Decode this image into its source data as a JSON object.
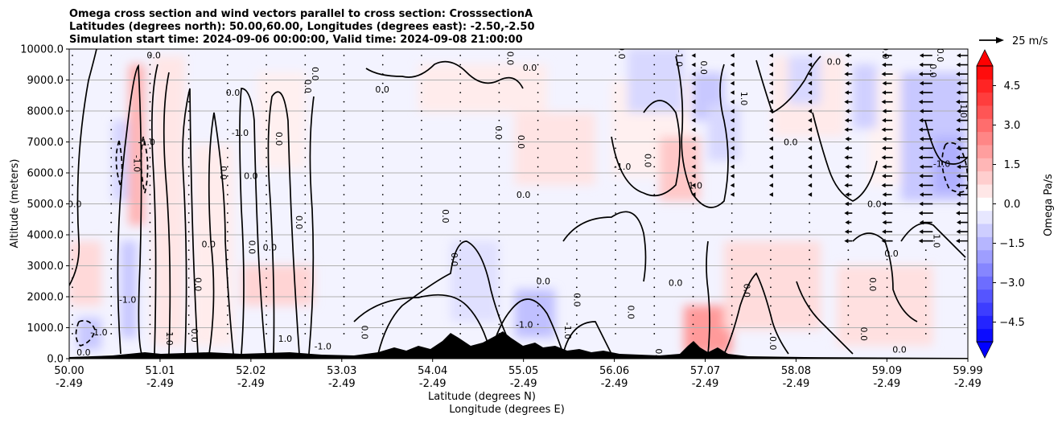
{
  "chart_data": {
    "type": "heatmap",
    "title_lines": [
      "Omega cross section and wind vectors parallel to cross section: CrosssectionA",
      "Latitudes (degrees north): 50.00,60.00, Longitudes (degrees east): -2.50,-2.50",
      "Simulation start time: 2024-09-06 00:00:00, Valid time: 2024-09-08 21:00:00"
    ],
    "ylabel": "Altitude (meters)",
    "xlabel_lat": "Latitude (degrees N)",
    "xlabel_lon": "Longitude (degrees E)",
    "ylim": [
      0,
      10000
    ],
    "yticks": [
      "0.0",
      "1000.0",
      "2000.0",
      "3000.0",
      "4000.0",
      "5000.0",
      "6000.0",
      "7000.0",
      "8000.0",
      "9000.0",
      "10000.0"
    ],
    "ytick_values": [
      0,
      1000,
      2000,
      3000,
      4000,
      5000,
      6000,
      7000,
      8000,
      9000,
      10000
    ],
    "xlim": [
      50.0,
      59.99
    ],
    "xticks": [
      {
        "lat": "50.00",
        "lon": "-2.49",
        "value": 50.0
      },
      {
        "lat": "51.01",
        "lon": "-2.49",
        "value": 51.01
      },
      {
        "lat": "52.02",
        "lon": "-2.49",
        "value": 52.02
      },
      {
        "lat": "53.03",
        "lon": "-2.49",
        "value": 53.03
      },
      {
        "lat": "54.04",
        "lon": "-2.49",
        "value": 54.04
      },
      {
        "lat": "55.05",
        "lon": "-2.49",
        "value": 55.05
      },
      {
        "lat": "56.06",
        "lon": "-2.49",
        "value": 56.06
      },
      {
        "lat": "57.07",
        "lon": "-2.49",
        "value": 57.07
      },
      {
        "lat": "58.08",
        "lon": "-2.49",
        "value": 58.08
      },
      {
        "lat": "59.09",
        "lon": "-2.49",
        "value": 59.09
      },
      {
        "lat": "59.99",
        "lon": "-2.49",
        "value": 59.99
      }
    ],
    "grid": "horizontal",
    "colorbar": {
      "label": "Omega Pa/s",
      "range": [
        -5.25,
        5.25
      ],
      "ticks": [
        "−4.5",
        "−3.0",
        "−1.5",
        "0.0",
        "1.5",
        "3.0",
        "4.5"
      ],
      "tick_values": [
        -4.5,
        -3.0,
        -1.5,
        0.0,
        1.5,
        3.0,
        4.5
      ],
      "levels": 21,
      "colormap": "bwr",
      "extend": "both"
    },
    "quiver_key": "25 m/s",
    "contour_labels": [
      {
        "text": "0.0",
        "lat": 50.16,
        "alt": 100
      },
      {
        "text": "-1.0",
        "lat": 50.33,
        "alt": 750
      },
      {
        "text": "0.0",
        "lat": 50.06,
        "alt": 4900
      },
      {
        "text": "-1.0",
        "lat": 50.65,
        "alt": 1800
      },
      {
        "text": "-1.0",
        "lat": 50.72,
        "alt": 6300
      },
      {
        "text": "-1.0",
        "lat": 50.86,
        "alt": 6900
      },
      {
        "text": "0.0",
        "lat": 50.94,
        "alt": 9700
      },
      {
        "text": "1.0",
        "lat": 51.08,
        "alt": 650
      },
      {
        "text": "0.0",
        "lat": 51.36,
        "alt": 750
      },
      {
        "text": "0.0",
        "lat": 51.4,
        "alt": 2400
      },
      {
        "text": "0.0",
        "lat": 51.55,
        "alt": 3600
      },
      {
        "text": "0.0",
        "lat": 51.68,
        "alt": 6000
      },
      {
        "text": "-1.0",
        "lat": 51.9,
        "alt": 7200
      },
      {
        "text": "0.0",
        "lat": 51.82,
        "alt": 8500
      },
      {
        "text": "0.0",
        "lat": 52.02,
        "alt": 5800
      },
      {
        "text": "0.0",
        "lat": 52.0,
        "alt": 3600
      },
      {
        "text": "0.0",
        "lat": 52.23,
        "alt": 3500
      },
      {
        "text": "1.0",
        "lat": 52.4,
        "alt": 550
      },
      {
        "text": "0.0",
        "lat": 52.3,
        "alt": 7100
      },
      {
        "text": "0.0",
        "lat": 52.62,
        "alt": 8800
      },
      {
        "text": "0.0",
        "lat": 52.7,
        "alt": 9200
      },
      {
        "text": "0.0",
        "lat": 52.52,
        "alt": 4400
      },
      {
        "text": "-1.0",
        "lat": 52.82,
        "alt": 300
      },
      {
        "text": "0.0",
        "lat": 53.25,
        "alt": 850
      },
      {
        "text": "0.0",
        "lat": 53.48,
        "alt": 8600
      },
      {
        "text": "0.0",
        "lat": 54.15,
        "alt": 4600
      },
      {
        "text": "0.0",
        "lat": 54.25,
        "alt": 3200
      },
      {
        "text": "0.0",
        "lat": 54.74,
        "alt": 7300
      },
      {
        "text": "0.0",
        "lat": 54.99,
        "alt": 7000
      },
      {
        "text": "0.0",
        "lat": 55.05,
        "alt": 5200
      },
      {
        "text": "-1.0",
        "lat": 55.06,
        "alt": 1000
      },
      {
        "text": "-1.0",
        "lat": 55.51,
        "alt": 900
      },
      {
        "text": "0.0",
        "lat": 55.27,
        "alt": 2400
      },
      {
        "text": "0.0",
        "lat": 55.61,
        "alt": 1900
      },
      {
        "text": "0.0",
        "lat": 54.87,
        "alt": 9700
      },
      {
        "text": "0.0",
        "lat": 55.12,
        "alt": 9300
      },
      {
        "text": "0.0",
        "lat": 56.11,
        "alt": 9900
      },
      {
        "text": "-1.0",
        "lat": 56.15,
        "alt": 6100
      },
      {
        "text": "0.0",
        "lat": 56.4,
        "alt": 6400
      },
      {
        "text": "0.0",
        "lat": 56.21,
        "alt": 1500
      },
      {
        "text": "0.0",
        "lat": 56.52,
        "alt": 100
      },
      {
        "text": "0.0",
        "lat": 56.74,
        "alt": 2350
      },
      {
        "text": "1.0",
        "lat": 56.96,
        "alt": 5500
      },
      {
        "text": "-1.0",
        "lat": 56.75,
        "alt": 9700
      },
      {
        "text": "0.0",
        "lat": 57.02,
        "alt": 9400
      },
      {
        "text": "1.0",
        "lat": 57.47,
        "alt": 8400
      },
      {
        "text": "0.0",
        "lat": 57.5,
        "alt": 2200
      },
      {
        "text": "0.0",
        "lat": 58.02,
        "alt": 6900
      },
      {
        "text": "0.0",
        "lat": 58.5,
        "alt": 9500
      },
      {
        "text": "0.0",
        "lat": 59.04,
        "alt": 9900
      },
      {
        "text": "0.0",
        "lat": 58.95,
        "alt": 4900
      },
      {
        "text": "0.0",
        "lat": 59.14,
        "alt": 3300
      },
      {
        "text": "0.0",
        "lat": 58.9,
        "alt": 2400
      },
      {
        "text": "1.0",
        "lat": 59.61,
        "alt": 3800
      },
      {
        "text": "-1.0",
        "lat": 59.7,
        "alt": 6200
      },
      {
        "text": "0.0",
        "lat": 59.65,
        "alt": 9800
      },
      {
        "text": "0.0",
        "lat": 59.57,
        "alt": 9300
      },
      {
        "text": "1.0",
        "lat": 59.91,
        "alt": 8000
      },
      {
        "text": "0.0",
        "lat": 58.8,
        "alt": 800
      },
      {
        "text": "0.0",
        "lat": 59.23,
        "alt": 200
      },
      {
        "text": "0.0",
        "lat": 57.79,
        "alt": 500
      }
    ]
  }
}
